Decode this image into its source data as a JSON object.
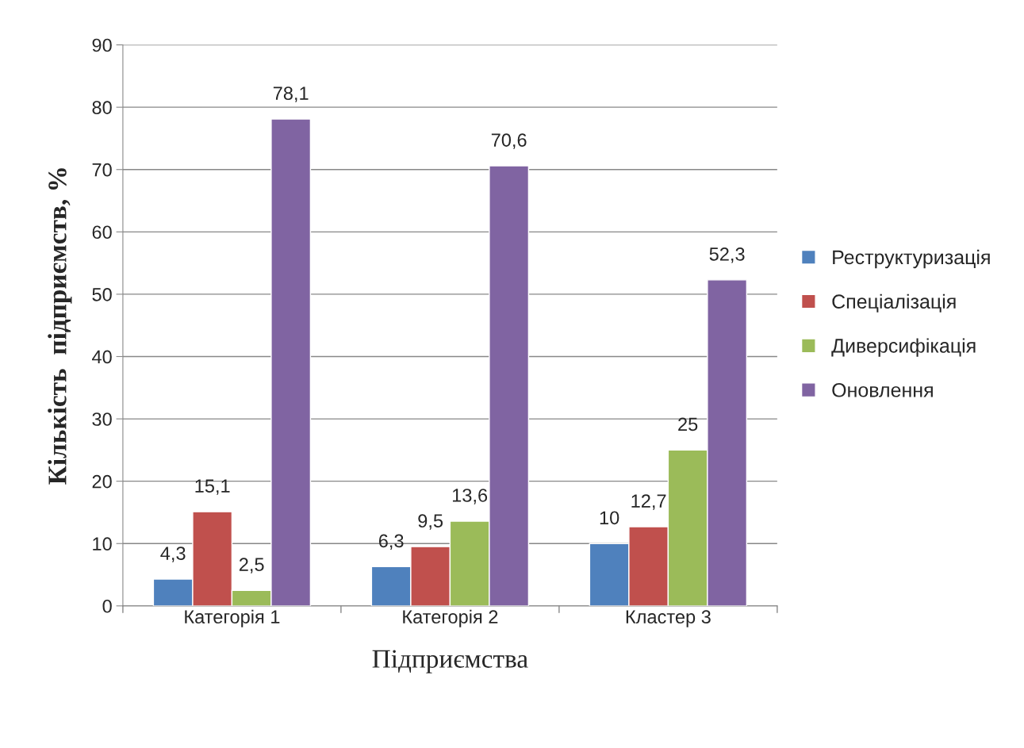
{
  "chart_data": {
    "type": "bar",
    "xlabel": "Підприємства",
    "ylabel": "Кількість  підприємств, %",
    "categories": [
      "Категорія 1",
      "Категорія 2",
      "Кластер 3"
    ],
    "series": [
      {
        "name": "Реструктуризація",
        "color": "#4f81bd",
        "values": [
          4.3,
          6.3,
          10
        ],
        "value_labels": [
          "4,3",
          "6,3",
          "10"
        ]
      },
      {
        "name": "Спеціалізація",
        "color": "#c0504d",
        "values": [
          15.1,
          9.5,
          12.7
        ],
        "value_labels": [
          "15,1",
          "9,5",
          "12,7"
        ]
      },
      {
        "name": "Диверсифікація",
        "color": "#9bbb59",
        "values": [
          2.5,
          13.6,
          25
        ],
        "value_labels": [
          "2,5",
          "13,6",
          "25"
        ]
      },
      {
        "name": "Оновлення",
        "color": "#8064a2",
        "values": [
          78.1,
          70.6,
          52.3
        ],
        "value_labels": [
          "78,1",
          "70,6",
          "52,3"
        ]
      }
    ],
    "ylim": [
      0,
      90
    ],
    "yticks": [
      0,
      10,
      20,
      30,
      40,
      50,
      60,
      70,
      80,
      90
    ],
    "grid": "y",
    "legend": "right"
  }
}
